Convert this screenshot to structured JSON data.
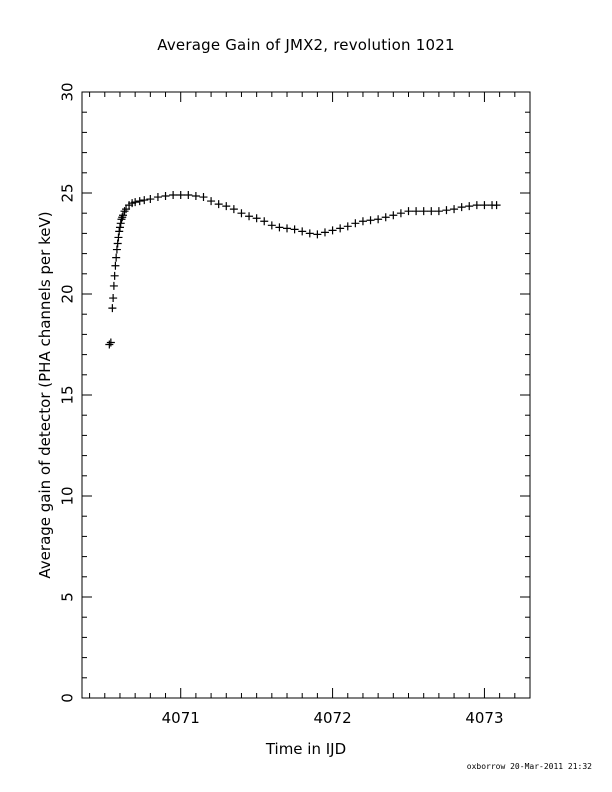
{
  "chart_data": {
    "type": "scatter",
    "title": "Average Gain of JMX2, revolution 1021",
    "xlabel": "Time in IJD",
    "ylabel": "Average gain of detector (PHA channels per keV)",
    "xlim": [
      4070.35,
      4073.3
    ],
    "ylim": [
      0,
      30
    ],
    "xticks": [
      4071,
      4072,
      4073
    ],
    "xtick_labels": [
      "4071",
      "4072",
      "4073"
    ],
    "yticks": [
      0,
      5,
      10,
      15,
      20,
      25,
      30
    ],
    "ytick_labels": [
      "0",
      "5",
      "10",
      "15",
      "20",
      "25",
      "30"
    ],
    "marker": "plus",
    "grid": false,
    "series": [
      {
        "x": [
          4070.53,
          4070.54,
          4070.55,
          4070.555,
          4070.56,
          4070.565,
          4070.57,
          4070.575,
          4070.58,
          4070.585,
          4070.59,
          4070.595,
          4070.6,
          4070.605,
          4070.61,
          4070.615,
          4070.62,
          4070.63,
          4070.64,
          4070.66,
          4070.68,
          4070.7,
          4070.73,
          4070.76,
          4070.8,
          4070.85,
          4070.9,
          4070.95,
          4071.0,
          4071.05,
          4071.1,
          4071.15,
          4071.2,
          4071.25,
          4071.3,
          4071.35,
          4071.4,
          4071.45,
          4071.5,
          4071.55,
          4071.6,
          4071.65,
          4071.7,
          4071.75,
          4071.8,
          4071.85,
          4071.9,
          4071.95,
          4072.0,
          4072.05,
          4072.1,
          4072.15,
          4072.2,
          4072.25,
          4072.3,
          4072.35,
          4072.4,
          4072.45,
          4072.5,
          4072.55,
          4072.6,
          4072.65,
          4072.7,
          4072.75,
          4072.8,
          4072.85,
          4072.9,
          4072.95,
          4073.0,
          4073.05,
          4073.08
        ],
        "y": [
          17.5,
          17.6,
          19.3,
          19.8,
          20.4,
          20.9,
          21.4,
          21.8,
          22.2,
          22.5,
          22.8,
          23.1,
          23.3,
          23.5,
          23.7,
          23.8,
          23.9,
          24.1,
          24.2,
          24.4,
          24.5,
          24.55,
          24.6,
          24.65,
          24.7,
          24.8,
          24.85,
          24.9,
          24.9,
          24.9,
          24.85,
          24.8,
          24.6,
          24.45,
          24.35,
          24.2,
          24.0,
          23.85,
          23.75,
          23.6,
          23.4,
          23.3,
          23.25,
          23.2,
          23.1,
          23.0,
          22.95,
          23.05,
          23.15,
          23.25,
          23.35,
          23.5,
          23.6,
          23.65,
          23.7,
          23.8,
          23.9,
          24.0,
          24.1,
          24.1,
          24.1,
          24.1,
          24.1,
          24.15,
          24.2,
          24.3,
          24.35,
          24.4,
          24.4,
          24.4,
          24.4
        ]
      }
    ]
  },
  "footer": "oxborrow 20-Mar-2011 21:32"
}
